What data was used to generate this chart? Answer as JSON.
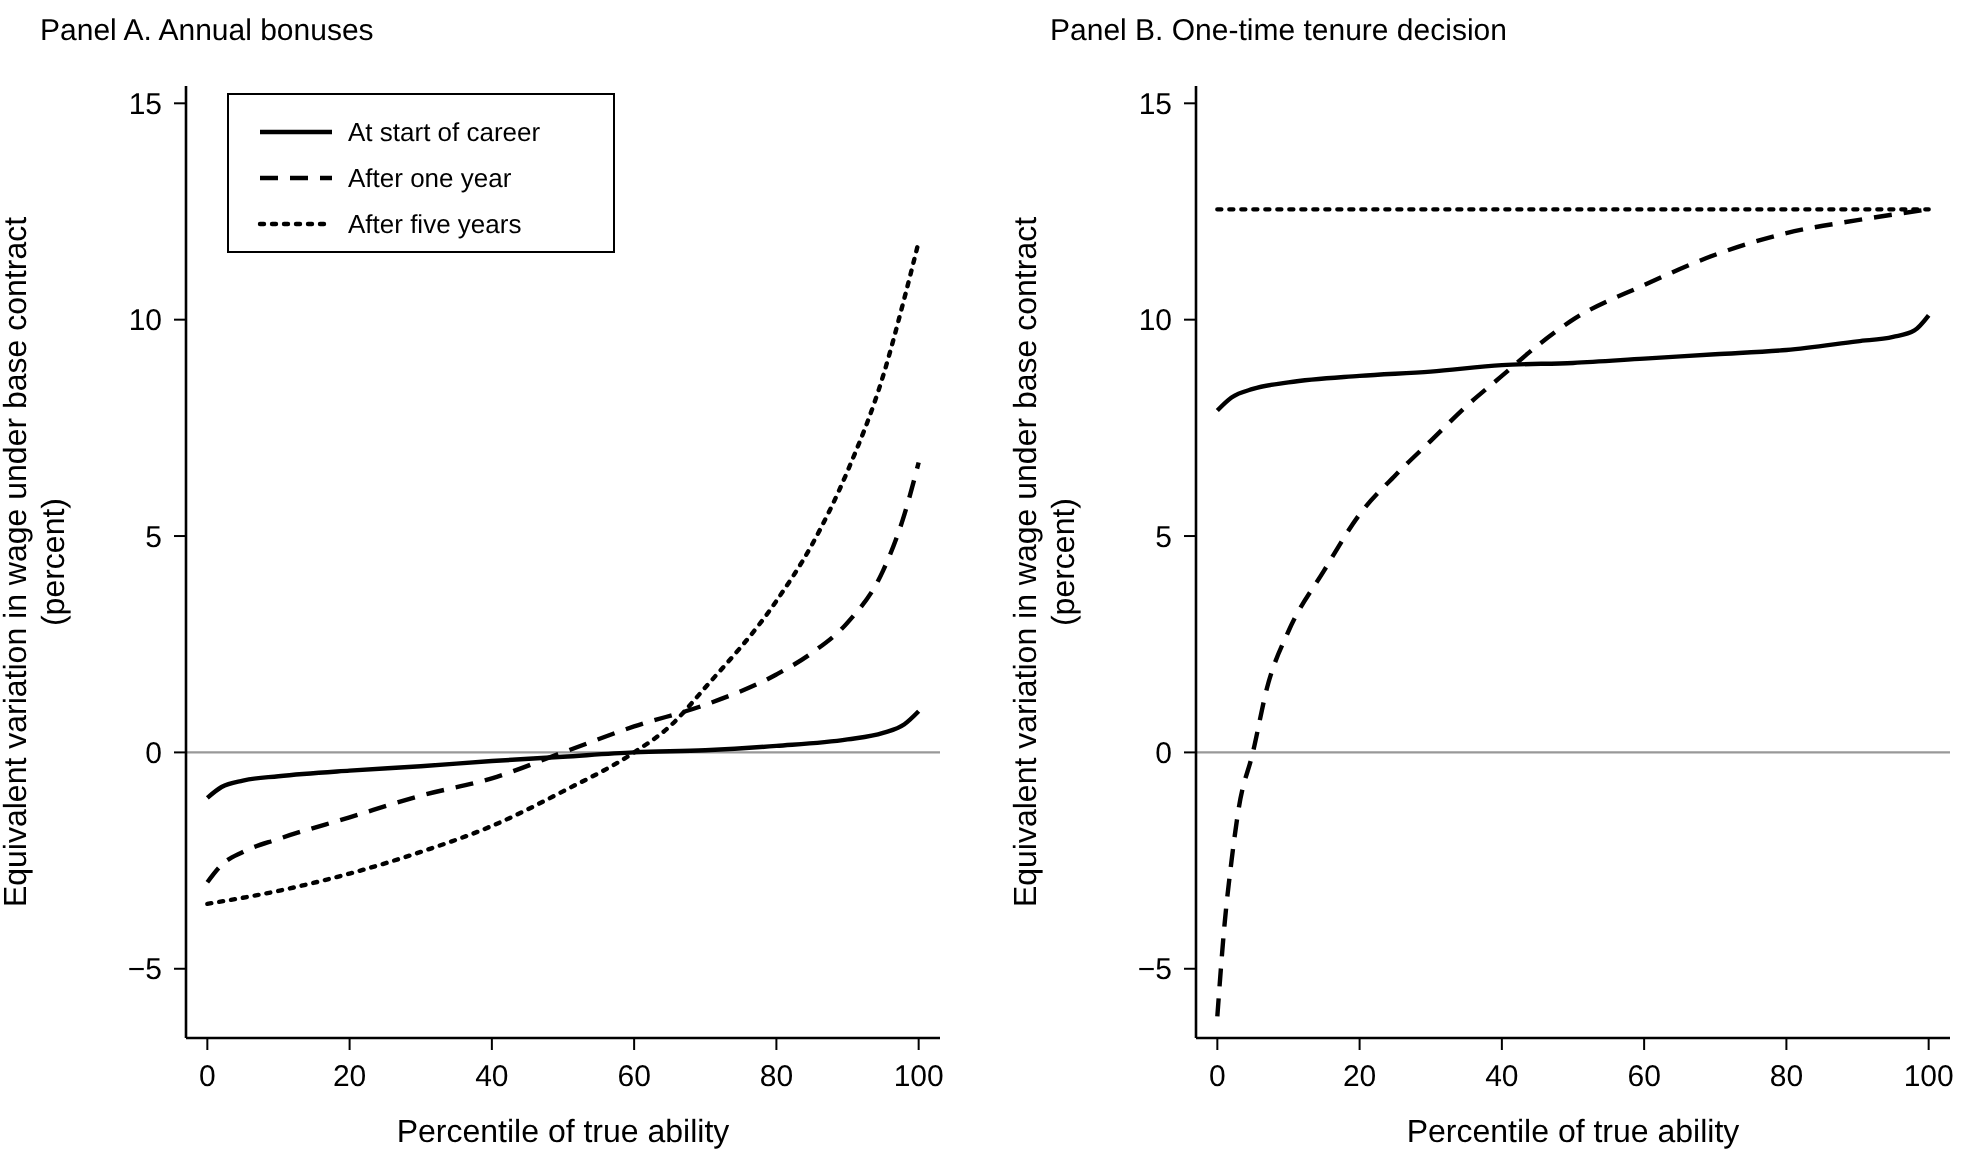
{
  "chart_data": [
    {
      "type": "line",
      "title": "Panel A. Annual bonuses",
      "xlabel": "Percentile of true ability",
      "ylabel": "Equivalent variation in wage under base contract\n(percent)",
      "xlim": [
        -3,
        103
      ],
      "ylim": [
        -6.6,
        15.4
      ],
      "xticks": [
        0,
        20,
        40,
        60,
        80,
        100
      ],
      "yticks": [
        {
          "value": -5,
          "label": "−5"
        },
        0,
        5,
        10,
        15
      ],
      "legend": "top left",
      "grid": false,
      "ref_lines": [
        {
          "axis": "y",
          "value": 0,
          "color": "#999999"
        }
      ],
      "series": [
        {
          "name": "At start of career",
          "color": "#000000",
          "line_style": "solid",
          "x": [
            0,
            2,
            5,
            10,
            20,
            30,
            40,
            50,
            60,
            70,
            80,
            90,
            95,
            98,
            100
          ],
          "values": [
            -1.05,
            -0.8,
            -0.65,
            -0.55,
            -0.42,
            -0.32,
            -0.2,
            -0.1,
            0,
            0.05,
            0.15,
            0.3,
            0.45,
            0.65,
            0.95
          ]
        },
        {
          "name": "After one year",
          "color": "#000000",
          "line_style": "dashed",
          "x": [
            0,
            2,
            5,
            10,
            20,
            30,
            40,
            50,
            60,
            70,
            80,
            85,
            90,
            95,
            98,
            100
          ],
          "values": [
            -3.0,
            -2.6,
            -2.3,
            -2.0,
            -1.5,
            -1.0,
            -0.6,
            0.0,
            0.6,
            1.1,
            1.8,
            2.3,
            3.0,
            4.2,
            5.5,
            6.7
          ]
        },
        {
          "name": "After five years",
          "color": "#000000",
          "line_style": "dotted",
          "x": [
            0,
            10,
            20,
            30,
            40,
            50,
            60,
            65,
            70,
            80,
            85,
            90,
            95,
            98,
            100
          ],
          "values": [
            -3.5,
            -3.2,
            -2.8,
            -2.3,
            -1.7,
            -0.9,
            0,
            0.6,
            1.5,
            3.5,
            4.8,
            6.5,
            8.7,
            10.5,
            11.8
          ]
        }
      ]
    },
    {
      "type": "line",
      "title": "Panel B. One-time tenure decision",
      "xlabel": "Percentile of true ability",
      "ylabel": "Equivalent variation in wage under base contract\n(percent)",
      "xlim": [
        -3,
        103
      ],
      "ylim": [
        -6.6,
        15.4
      ],
      "xticks": [
        0,
        20,
        40,
        60,
        80,
        100
      ],
      "yticks": [
        {
          "value": -5,
          "label": "−5"
        },
        0,
        5,
        10,
        15
      ],
      "legend": false,
      "grid": false,
      "ref_lines": [
        {
          "axis": "y",
          "value": 0,
          "color": "#999999"
        }
      ],
      "series": [
        {
          "color": "#000000",
          "line_style": "solid",
          "x": [
            0,
            2,
            5,
            10,
            20,
            30,
            40,
            50,
            60,
            70,
            80,
            90,
            95,
            98,
            100
          ],
          "values": [
            7.9,
            8.2,
            8.4,
            8.55,
            8.7,
            8.8,
            8.95,
            9.0,
            9.1,
            9.2,
            9.3,
            9.5,
            9.6,
            9.75,
            10.1
          ]
        },
        {
          "color": "#000000",
          "line_style": "dashed",
          "x": [
            0,
            1,
            2,
            3,
            5,
            7,
            10,
            15,
            20,
            25,
            30,
            35,
            40,
            45,
            50,
            60,
            70,
            80,
            90,
            100
          ],
          "values": [
            -6.1,
            -4.0,
            -2.5,
            -1.3,
            0,
            1.5,
            2.8,
            4.2,
            5.5,
            6.4,
            7.2,
            8.0,
            8.7,
            9.4,
            10.0,
            10.8,
            11.5,
            12.0,
            12.3,
            12.55
          ]
        },
        {
          "color": "#000000",
          "line_style": "dotted",
          "x": [
            0,
            100
          ],
          "values": [
            12.55,
            12.55
          ]
        }
      ]
    }
  ]
}
